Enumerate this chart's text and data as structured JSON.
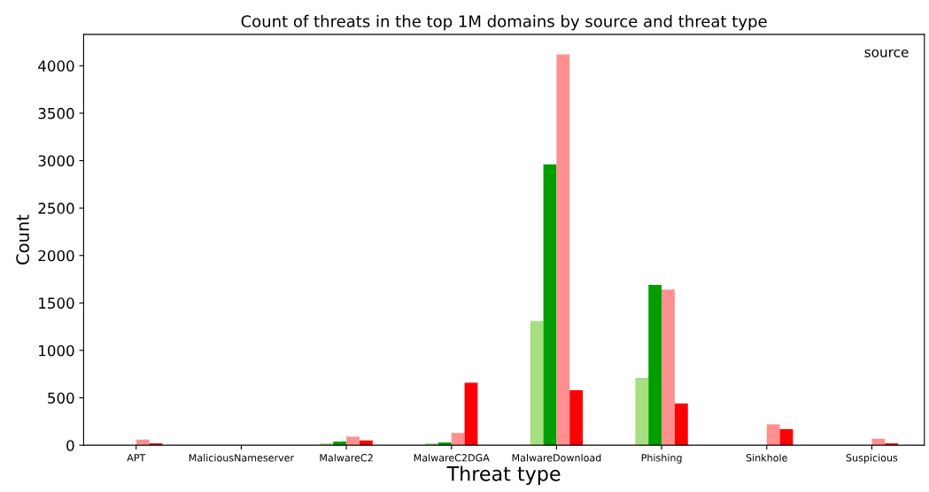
{
  "chart_data": {
    "type": "bar",
    "title": "Count of threats in the top 1M domains by source and threat type",
    "xlabel": "Threat type",
    "ylabel": "Count",
    "legend_title": "source",
    "categories": [
      "APT",
      "MaliciousNameserver",
      "MalwareC2",
      "MalwareC2DGA",
      "MalwareDownload",
      "Phishing",
      "Sinkhole",
      "Suspicious"
    ],
    "series": [
      {
        "color": "#a6df7f",
        "values": [
          null,
          null,
          20,
          20,
          1310,
          710,
          null,
          null
        ]
      },
      {
        "color": "#009e00",
        "values": [
          null,
          null,
          40,
          30,
          2960,
          1690,
          null,
          null
        ]
      },
      {
        "color": "#ff9090",
        "values": [
          60,
          null,
          90,
          130,
          4120,
          1640,
          220,
          70
        ]
      },
      {
        "color": "#ff0000",
        "values": [
          20,
          null,
          50,
          660,
          580,
          440,
          170,
          20
        ]
      }
    ],
    "ylim": [
      0,
      4330
    ],
    "yticks": [
      0,
      500,
      1000,
      1500,
      2000,
      2500,
      3000,
      3500,
      4000
    ],
    "grid": false
  }
}
